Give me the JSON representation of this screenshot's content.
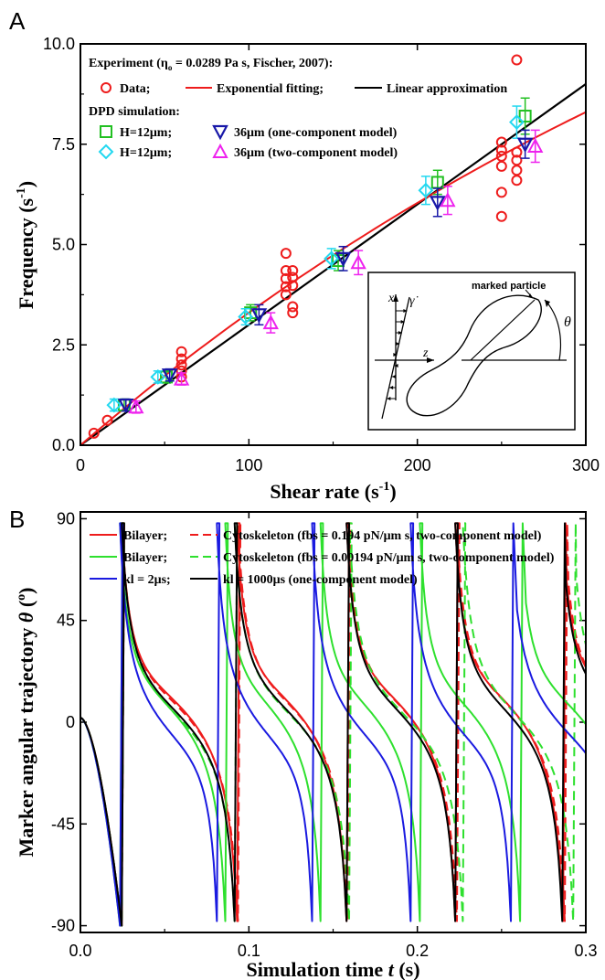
{
  "chart_data": [
    {
      "panel": "A",
      "type": "scatter",
      "xlabel": "Shear rate (s-1)",
      "ylabel": "Frequency (s-1)",
      "xlim": [
        0,
        300
      ],
      "ylim": [
        0,
        10
      ],
      "xticks": [
        0,
        100,
        200,
        300
      ],
      "yticks": [
        "0.0",
        "2.5",
        "5.0",
        "7.5",
        "10.0"
      ],
      "legend": {
        "head1": "Experiment (η = 0.0289 Pa s, Fischer, 2007):",
        "head1_sub": "o",
        "data": "Data;",
        "expfit": "Exponential fitting;",
        "linear": "Linear approximation",
        "head2": "DPD simulation:",
        "h12": "H=12μm;",
        "m36a": "36μm (one-component model)",
        "m36b": "36μm (two-component model)"
      },
      "inset": {
        "marked": "marked particle",
        "x": "x",
        "z": "z",
        "theta": "θ",
        "gamma": "γ̇"
      },
      "series": [
        {
          "name": "Data",
          "color": "#ee1c1c",
          "marker": "circle",
          "points": [
            [
              8,
              0.3
            ],
            [
              16,
              0.62
            ],
            [
              60,
              1.7
            ],
            [
              60,
              1.85
            ],
            [
              60,
              2.0
            ],
            [
              60,
              2.15
            ],
            [
              60,
              2.33
            ],
            [
              122,
              3.75
            ],
            [
              122,
              3.95
            ],
            [
              122,
              4.15
            ],
            [
              122,
              4.35
            ],
            [
              122,
              4.78
            ],
            [
              126,
              3.3
            ],
            [
              126,
              3.45
            ],
            [
              126,
              3.98
            ],
            [
              126,
              4.18
            ],
            [
              126,
              4.35
            ],
            [
              250,
              5.7
            ],
            [
              250,
              6.3
            ],
            [
              250,
              6.95
            ],
            [
              250,
              7.2
            ],
            [
              250,
              7.35
            ],
            [
              250,
              7.55
            ],
            [
              259,
              6.6
            ],
            [
              259,
              6.85
            ],
            [
              259,
              7.1
            ],
            [
              259,
              7.3
            ],
            [
              259,
              9.6
            ]
          ]
        },
        {
          "name": "Exponential fitting",
          "color": "#ee1c1c",
          "type": "line",
          "points": [
            [
              0,
              0
            ],
            [
              50,
              1.55
            ],
            [
              100,
              3.05
            ],
            [
              150,
              4.5
            ],
            [
              200,
              5.8
            ],
            [
              250,
              7.1
            ],
            [
              300,
              8.3
            ]
          ]
        },
        {
          "name": "Linear approximation",
          "color": "#000000",
          "type": "line",
          "points": [
            [
              0,
              0
            ],
            [
              300,
              9.0
            ]
          ]
        },
        {
          "name": "H=12μm (one-component)",
          "color": "#22c022",
          "marker": "square",
          "points": [
            [
              26,
              1.0,
              0.15
            ],
            [
              51,
              1.7,
              0.15
            ],
            [
              101,
              3.3,
              0.2
            ],
            [
              153,
              4.6,
              0.25
            ],
            [
              212,
              6.55,
              0.3
            ],
            [
              264,
              8.2,
              0.45
            ]
          ]
        },
        {
          "name": "H=12μm (two-component)",
          "color": "#22d8f0",
          "marker": "diamond",
          "points": [
            [
              20,
              1.0,
              0.15
            ],
            [
              46,
              1.7,
              0.15
            ],
            [
              98,
              3.2,
              0.2
            ],
            [
              149,
              4.65,
              0.25
            ],
            [
              205,
              6.35,
              0.35
            ],
            [
              259,
              8.05,
              0.4
            ]
          ]
        },
        {
          "name": "36μm (one-component model)",
          "color": "#1818a8",
          "marker": "triangle-down",
          "points": [
            [
              27,
              1.0,
              0.15
            ],
            [
              53,
              1.75,
              0.15
            ],
            [
              106,
              3.25,
              0.25
            ],
            [
              156,
              4.65,
              0.3
            ],
            [
              212,
              6.05,
              0.35
            ],
            [
              264,
              7.5,
              0.35
            ]
          ]
        },
        {
          "name": "36μm (two-component model)",
          "color": "#ee22ee",
          "marker": "triangle-up",
          "points": [
            [
              33,
              0.95,
              0.15
            ],
            [
              60,
              1.65,
              0.15
            ],
            [
              113,
              3.05,
              0.25
            ],
            [
              165,
              4.55,
              0.3
            ],
            [
              218,
              6.1,
              0.35
            ],
            [
              270,
              7.45,
              0.4
            ]
          ]
        }
      ]
    },
    {
      "panel": "B",
      "type": "line",
      "xlabel": "Simulation time t (s)",
      "ylabel": "Marker angular trajectory θ (o)",
      "xlim": [
        0,
        0.3
      ],
      "ylim": [
        -93,
        93
      ],
      "xticks": [
        "0.0",
        "0.1",
        "0.2",
        "0.3"
      ],
      "yticks": [
        "-90",
        "-45",
        "0",
        "45",
        "90"
      ],
      "legend": {
        "bilayer": "Bilayer;",
        "cyto1": "Cytoskeleton (fbs = 0.194 pN/μm s, two-component model)",
        "cyto2": "Cytoskeleton (fbs = 0.00194 pN/μm s, two-component model)",
        "kl1": "kl = 2μs;",
        "kl2": "kl = 1000μs (one-component model)"
      },
      "series": [
        {
          "name": "Bilayer (fbs = 0.194)",
          "color": "#ee1c1c",
          "dash": false,
          "flips": [
            0.0245,
            0.093,
            0.158,
            0.2225,
            0.2865
          ]
        },
        {
          "name": "Cytoskeleton (fbs = 0.194)",
          "color": "#ee1c1c",
          "dash": true,
          "flips": [
            0.0245,
            0.0935,
            0.159,
            0.2235,
            0.2875
          ]
        },
        {
          "name": "Bilayer (fbs = 0.00194)",
          "color": "#2ee02e",
          "dash": false,
          "flips": [
            0.0235,
            0.086,
            0.1425,
            0.2015,
            0.261
          ]
        },
        {
          "name": "Cytoskeleton (fbs = 0.00194)",
          "color": "#2ee02e",
          "dash": true,
          "flips": [
            0.0245,
            0.0915,
            0.1595,
            0.227,
            0.2925
          ]
        },
        {
          "name": "kl = 2μs",
          "color": "#1a1ae0",
          "dash": false,
          "flips": [
            0.0235,
            0.081,
            0.1375,
            0.196,
            0.2555
          ]
        },
        {
          "name": "kl = 1000μs",
          "color": "#000000",
          "dash": false,
          "flips": [
            0.0245,
            0.0915,
            0.158,
            0.2225,
            0.286
          ]
        }
      ]
    }
  ],
  "labels": {
    "A": "A",
    "B": "B"
  }
}
